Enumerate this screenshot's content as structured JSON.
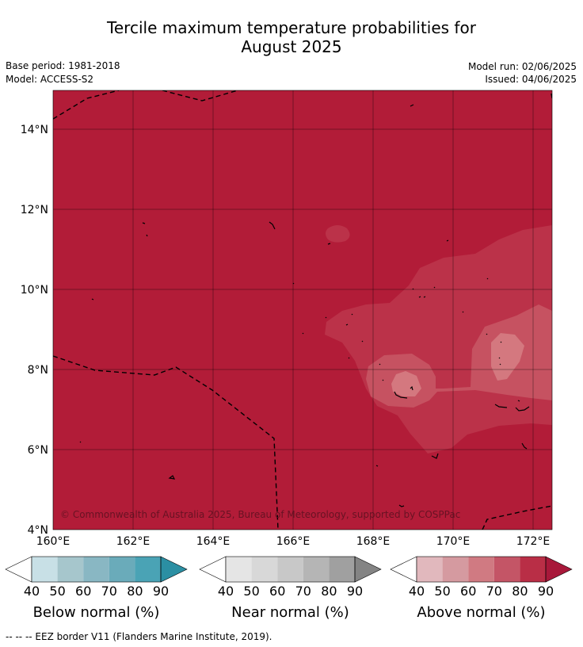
{
  "header": {
    "title_line1": "Tercile maximum temperature probabilities for",
    "title_line2": "August 2025",
    "base_period": "Base period: 1981-2018",
    "model": "Model: ACCESS-S2",
    "model_run": "Model run: 02/06/2025",
    "issued": "Issued: 04/06/2025"
  },
  "map": {
    "lat_ticks": [
      "14°N",
      "12°N",
      "10°N",
      "8°N",
      "6°N",
      "4°N"
    ],
    "lon_ticks": [
      "160°E",
      "162°E",
      "164°E",
      "166°E",
      "168°E",
      "170°E",
      "172°E"
    ],
    "copyright": "© Commonwealth of Australia 2025, Bureau of Meteorology, supported by COSPPac",
    "colors": {
      "above_90": "#b21c38",
      "above_80": "#bb3249",
      "above_70": "#c65261",
      "above_60": "#d4787f"
    }
  },
  "colorbars": [
    {
      "label": "Below normal (%)",
      "ticks": [
        "40",
        "50",
        "60",
        "70",
        "80",
        "90"
      ],
      "colors": [
        "#ffffff",
        "#c8e0e6",
        "#a6c6cc",
        "#89b7c3",
        "#6aabba",
        "#4aa3b5",
        "#2b8fa3"
      ]
    },
    {
      "label": "Near normal (%)",
      "ticks": [
        "40",
        "50",
        "60",
        "70",
        "80",
        "90"
      ],
      "colors": [
        "#ffffff",
        "#e5e5e5",
        "#d8d8d8",
        "#c8c8c8",
        "#b5b5b5",
        "#a0a0a0",
        "#848484"
      ]
    },
    {
      "label": "Above normal (%)",
      "ticks": [
        "40",
        "50",
        "60",
        "70",
        "80",
        "90"
      ],
      "colors": [
        "#ffffff",
        "#e1b8bd",
        "#d59aa0",
        "#d07a82",
        "#c45566",
        "#b92e46",
        "#a8183a"
      ]
    }
  ],
  "footer": {
    "legend_text": "--  --  -- EEZ border V11 (Flanders Marine Institute, 2019)."
  }
}
